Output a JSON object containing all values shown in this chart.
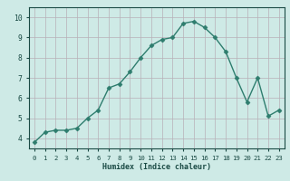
{
  "x": [
    0,
    1,
    2,
    3,
    4,
    5,
    6,
    7,
    8,
    9,
    10,
    11,
    12,
    13,
    14,
    15,
    16,
    17,
    18,
    19,
    20,
    21,
    22,
    23
  ],
  "y": [
    3.8,
    4.3,
    4.4,
    4.4,
    4.5,
    5.0,
    5.4,
    6.5,
    6.7,
    7.3,
    8.0,
    8.6,
    8.9,
    9.0,
    9.7,
    9.8,
    9.5,
    9.0,
    8.3,
    7.0,
    5.8,
    7.0,
    5.1,
    5.4
  ],
  "xlabel": "Humidex (Indice chaleur)",
  "ylim": [
    3.5,
    10.5
  ],
  "xlim": [
    -0.5,
    23.5
  ],
  "line_color": "#2e7d6e",
  "marker": "D",
  "marker_size": 2.5,
  "bg_color": "#ceeae6",
  "grid_color_major": "#b8b0b8",
  "grid_color_minor": "#d4ccd4",
  "axis_label_color": "#1a4a44",
  "tick_label_color": "#1a4a44",
  "yticks": [
    4,
    5,
    6,
    7,
    8,
    9,
    10
  ],
  "xticks": [
    0,
    1,
    2,
    3,
    4,
    5,
    6,
    7,
    8,
    9,
    10,
    11,
    12,
    13,
    14,
    15,
    16,
    17,
    18,
    19,
    20,
    21,
    22,
    23
  ],
  "linewidth": 1.0,
  "xlabel_fontsize": 6.0,
  "tick_fontsize_x": 5.2,
  "tick_fontsize_y": 5.8
}
